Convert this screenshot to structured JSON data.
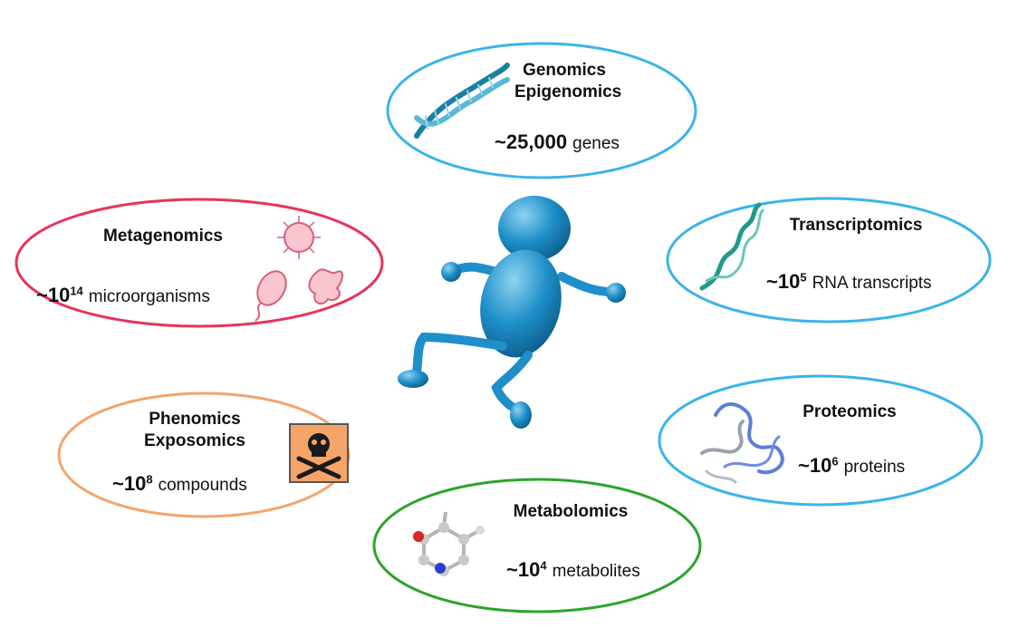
{
  "person": {
    "color": "#1e8fc9"
  },
  "nodes": [
    {
      "id": "genomics",
      "title1": "Genomics",
      "title2": "Epigenomics",
      "approx": "~25,000",
      "exp": "",
      "unit": "genes",
      "color": "#3bb4e8",
      "icon": "dna-helix-icon"
    },
    {
      "id": "transcriptomics",
      "title1": "Transcriptomics",
      "title2": "",
      "approx": "~10",
      "exp": "5",
      "unit": "RNA transcripts",
      "color": "#3bb4e8",
      "icon": "rna-strand-icon"
    },
    {
      "id": "proteomics",
      "title1": "Proteomics",
      "title2": "",
      "approx": "~10",
      "exp": "6",
      "unit": "proteins",
      "color": "#3bb4e8",
      "icon": "protein-structure-icon"
    },
    {
      "id": "metabolomics",
      "title1": "Metabolomics",
      "title2": "",
      "approx": "~10",
      "exp": "4",
      "unit": "metabolites",
      "color": "#2aa52a",
      "icon": "molecule-icon"
    },
    {
      "id": "phenomics",
      "title1": "Phenomics",
      "title2": "Exposomics",
      "approx": "~10",
      "exp": "8",
      "unit": "compounds",
      "color": "#f4a46a",
      "icon": "toxic-hazard-icon"
    },
    {
      "id": "metagenomics",
      "title1": "Metagenomics",
      "title2": "",
      "approx": "~10",
      "exp": "14",
      "unit": "microorganisms",
      "color": "#e8335a",
      "icon": "microorganisms-icon"
    }
  ]
}
